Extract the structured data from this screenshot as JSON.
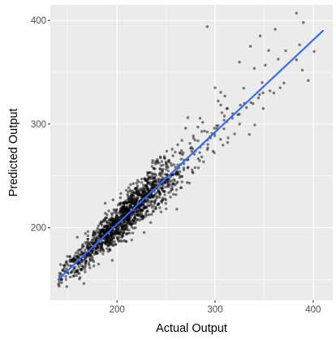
{
  "chart_data": {
    "type": "scatter",
    "title": "",
    "xlabel": "Actual Output",
    "ylabel": "Predicted Output",
    "xlim": [
      132,
      420
    ],
    "ylim": [
      130,
      415
    ],
    "x_ticks": [
      200,
      300,
      400
    ],
    "y_ticks": [
      200,
      300,
      400
    ],
    "x_minor_ticks": [
      150,
      250,
      350
    ],
    "y_minor_ticks": [
      150,
      250,
      350
    ],
    "grid": true,
    "panel_background": "#ebebeb",
    "grid_color": "#ffffff",
    "point_color": "#000000",
    "point_alpha": 0.5,
    "fit_line_color": "#3366ff",
    "fit_line": {
      "x": [
        140,
        410
      ],
      "y": [
        150,
        390
      ]
    },
    "point_cloud_summary": {
      "n_points": 1500,
      "x_range": [
        140,
        410
      ],
      "center_x": 205,
      "spread_x": 30
    },
    "series": [
      {
        "values": [
          {
            "x": 148,
            "y": 150
          },
          {
            "x": 160,
            "y": 165
          },
          {
            "x": 175,
            "y": 178
          },
          {
            "x": 190,
            "y": 193
          },
          {
            "x": 200,
            "y": 203
          },
          {
            "x": 210,
            "y": 212
          },
          {
            "x": 220,
            "y": 220
          },
          {
            "x": 235,
            "y": 234
          },
          {
            "x": 250,
            "y": 247
          },
          {
            "x": 265,
            "y": 261
          },
          {
            "x": 280,
            "y": 274
          },
          {
            "x": 295,
            "y": 288
          },
          {
            "x": 292,
            "y": 394
          },
          {
            "x": 383,
            "y": 407
          },
          {
            "x": 390,
            "y": 398
          },
          {
            "x": 346,
            "y": 385
          },
          {
            "x": 336,
            "y": 375
          },
          {
            "x": 383,
            "y": 362
          },
          {
            "x": 395,
            "y": 342
          },
          {
            "x": 401,
            "y": 370
          },
          {
            "x": 389,
            "y": 352
          },
          {
            "x": 348,
            "y": 340
          },
          {
            "x": 356,
            "y": 332
          },
          {
            "x": 330,
            "y": 320
          },
          {
            "x": 318,
            "y": 310
          },
          {
            "x": 300,
            "y": 335
          },
          {
            "x": 310,
            "y": 327
          },
          {
            "x": 270,
            "y": 296
          },
          {
            "x": 335,
            "y": 290
          },
          {
            "x": 325,
            "y": 300
          }
        ]
      }
    ]
  }
}
